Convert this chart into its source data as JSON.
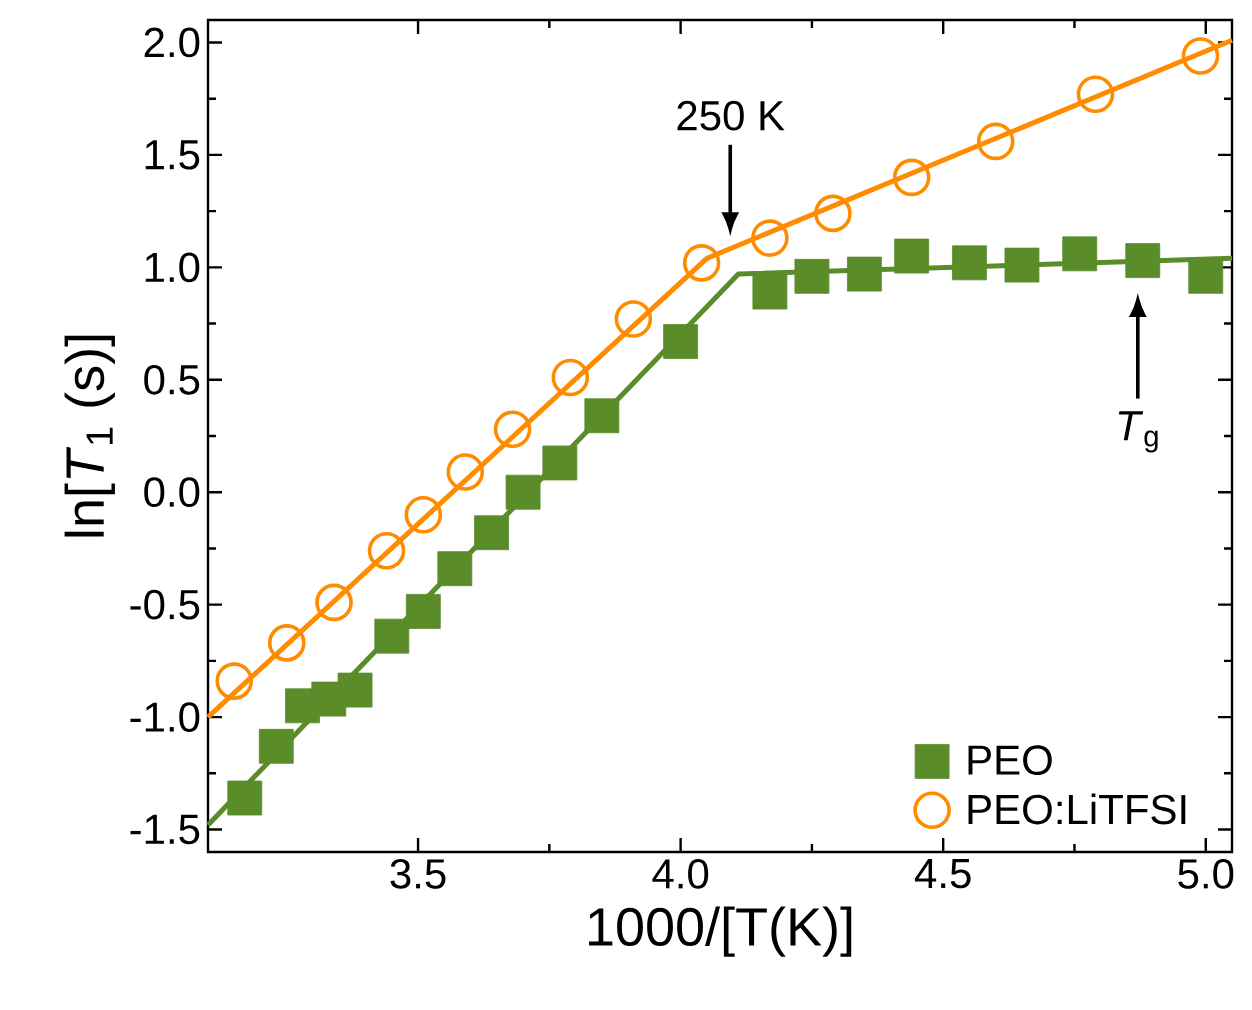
{
  "chart_data": {
    "type": "scatter",
    "xlabel": "1000/[T(K)]",
    "ylabel": "ln[*T*$_{1}$ (s)]",
    "xlim": [
      3.1,
      5.05
    ],
    "ylim": [
      -1.6,
      2.1
    ],
    "xticks": [
      3.5,
      {
        "value": 4.0,
        "label": "4.0"
      },
      4.5,
      {
        "value": 5.0,
        "label": "5.0"
      }
    ],
    "yticks": [
      -1.5,
      {
        "value": -1.0,
        "label": "-1.0"
      },
      -0.5,
      {
        "value": 0.0,
        "label": "0.0"
      },
      0.5,
      {
        "value": 1.0,
        "label": "1.0"
      },
      1.5,
      {
        "value": 2.0,
        "label": "2.0"
      }
    ],
    "legend": "bottom right",
    "grid": false,
    "series": [
      {
        "name": "PEO",
        "marker": "square",
        "color": "#5b8c2a",
        "x": [
          3.17,
          3.23,
          3.28,
          3.33,
          3.38,
          3.45,
          3.51,
          3.57,
          3.64,
          3.7,
          3.77,
          3.85,
          4.0,
          4.17,
          4.25,
          4.35,
          4.44,
          4.55,
          4.65,
          4.76,
          4.88,
          5.0
        ],
        "values": [
          -1.36,
          -1.13,
          -0.95,
          -0.92,
          -0.88,
          -0.64,
          -0.53,
          -0.34,
          -0.18,
          0.0,
          0.13,
          0.34,
          0.67,
          0.89,
          0.96,
          0.97,
          1.05,
          1.02,
          1.01,
          1.06,
          1.03,
          0.96
        ]
      },
      {
        "name": "PEO:LiTFSI",
        "marker": "circle",
        "color": "#ff8c00",
        "x": [
          3.15,
          3.25,
          3.34,
          3.44,
          3.51,
          3.59,
          3.68,
          3.79,
          3.91,
          4.04,
          4.17,
          4.29,
          4.44,
          4.6,
          4.79,
          4.99
        ],
        "values": [
          -0.84,
          -0.67,
          -0.49,
          -0.26,
          -0.1,
          0.09,
          0.28,
          0.51,
          0.77,
          1.02,
          1.13,
          1.24,
          1.4,
          1.56,
          1.77,
          1.94
        ]
      },
      {
        "type": "line",
        "marker": "none",
        "color": "#5b8c2a",
        "x": [
          3.1,
          4.11,
          5.05
        ],
        "values": [
          -1.48,
          0.97,
          1.04
        ]
      },
      {
        "type": "line",
        "marker": "none",
        "color": "#ff8c00",
        "x": [
          3.1,
          4.05,
          5.05
        ],
        "values": [
          -1.0,
          1.04,
          2.01
        ]
      }
    ],
    "annotations": [
      "250 K",
      "*T*$_{g}$"
    ]
  }
}
